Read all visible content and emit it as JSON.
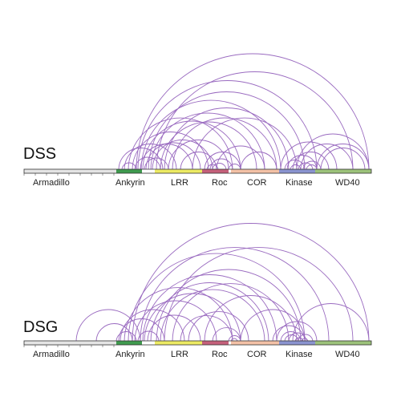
{
  "colors": {
    "arc": "#9a6bc0",
    "track": "#e6e6e6",
    "outline": "#333333"
  },
  "domains": [
    {
      "name": "Armadillo",
      "color": "#e4e4e4"
    },
    {
      "name": "Ankyrin",
      "color": "#3f9a4e"
    },
    {
      "name": "LRR",
      "color": "#ecea63"
    },
    {
      "name": "Roc",
      "color": "#c4607a"
    },
    {
      "name": "COR",
      "color": "#f3c1a6"
    },
    {
      "name": "Kinase",
      "color": "#8a93cf"
    },
    {
      "name": "WD40",
      "color": "#9cc27a"
    }
  ],
  "panels": [
    {
      "label": "DSS",
      "links": [
        [
          148,
          203
        ],
        [
          152,
          170
        ],
        [
          155,
          220
        ],
        [
          160,
          290
        ],
        [
          165,
          260
        ],
        [
          168,
          200
        ],
        [
          170,
          460
        ],
        [
          172,
          395
        ],
        [
          175,
          240
        ],
        [
          176,
          350
        ],
        [
          178,
          300
        ],
        [
          180,
          210
        ],
        [
          182,
          250
        ],
        [
          185,
          380
        ],
        [
          188,
          330
        ],
        [
          190,
          265
        ],
        [
          195,
          440
        ],
        [
          200,
          320
        ],
        [
          205,
          360
        ],
        [
          210,
          285
        ],
        [
          215,
          345
        ],
        [
          225,
          270
        ],
        [
          240,
          370
        ],
        [
          255,
          300
        ],
        [
          258,
          272
        ],
        [
          262,
          290
        ],
        [
          265,
          282
        ],
        [
          270,
          330
        ],
        [
          285,
          300
        ],
        [
          300,
          345
        ],
        [
          350,
          420
        ],
        [
          355,
          380
        ],
        [
          358,
          395
        ],
        [
          362,
          375
        ],
        [
          365,
          410
        ],
        [
          370,
          460
        ],
        [
          372,
          390
        ],
        [
          375,
          440
        ],
        [
          378,
          400
        ],
        [
          382,
          395
        ],
        [
          395,
          460
        ],
        [
          400,
          455
        ]
      ]
    },
    {
      "label": "DSG",
      "links": [
        [
          95,
          175
        ],
        [
          120,
          165
        ],
        [
          145,
          170
        ],
        [
          148,
          205
        ],
        [
          150,
          230
        ],
        [
          155,
          290
        ],
        [
          160,
          380
        ],
        [
          165,
          460
        ],
        [
          168,
          270
        ],
        [
          172,
          198
        ],
        [
          175,
          410
        ],
        [
          178,
          345
        ],
        [
          180,
          300
        ],
        [
          184,
          250
        ],
        [
          188,
          335
        ],
        [
          195,
          375
        ],
        [
          200,
          330
        ],
        [
          205,
          440
        ],
        [
          215,
          360
        ],
        [
          225,
          290
        ],
        [
          235,
          310
        ],
        [
          255,
          370
        ],
        [
          265,
          300
        ],
        [
          285,
          300
        ],
        [
          288,
          296
        ],
        [
          300,
          380
        ],
        [
          340,
          380
        ],
        [
          345,
          395
        ],
        [
          350,
          375
        ],
        [
          355,
          372
        ],
        [
          360,
          382
        ],
        [
          365,
          460
        ],
        [
          368,
          378
        ],
        [
          372,
          390
        ],
        [
          376,
          384
        ]
      ]
    }
  ]
}
